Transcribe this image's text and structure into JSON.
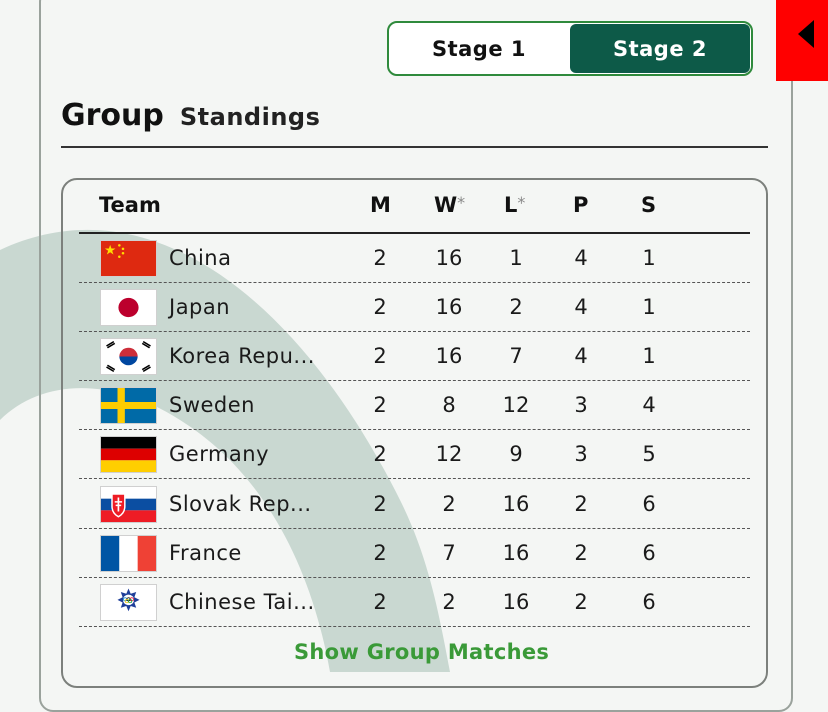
{
  "stages": [
    {
      "label": "Stage 1",
      "active": false
    },
    {
      "label": "Stage 2",
      "active": true
    }
  ],
  "title": {
    "main": "Group",
    "sub": "Standings"
  },
  "columns": {
    "team": "Team",
    "m": "M",
    "w": "W",
    "l": "L",
    "p": "P",
    "s": "S",
    "star": "*"
  },
  "rows": [
    {
      "team": "China",
      "flag": "china-flag-icon",
      "m": "2",
      "w": "16",
      "l": "1",
      "p": "4",
      "s": "1"
    },
    {
      "team": "Japan",
      "flag": "japan-flag-icon",
      "m": "2",
      "w": "16",
      "l": "2",
      "p": "4",
      "s": "1"
    },
    {
      "team": "Korea Repu...",
      "flag": "korea-flag-icon",
      "m": "2",
      "w": "16",
      "l": "7",
      "p": "4",
      "s": "1"
    },
    {
      "team": "Sweden",
      "flag": "sweden-flag-icon",
      "m": "2",
      "w": "8",
      "l": "12",
      "p": "3",
      "s": "4"
    },
    {
      "team": "Germany",
      "flag": "germany-flag-icon",
      "m": "2",
      "w": "12",
      "l": "9",
      "p": "3",
      "s": "5"
    },
    {
      "team": "Slovak Rep...",
      "flag": "slovakia-flag-icon",
      "m": "2",
      "w": "2",
      "l": "16",
      "p": "2",
      "s": "6"
    },
    {
      "team": "France",
      "flag": "france-flag-icon",
      "m": "2",
      "w": "7",
      "l": "16",
      "p": "2",
      "s": "6"
    },
    {
      "team": "Chinese Tai...",
      "flag": "chinese-taipei-flag-icon",
      "m": "2",
      "w": "2",
      "l": "16",
      "p": "2",
      "s": "6"
    }
  ],
  "show_matches": "Show Group Matches",
  "colors": {
    "accent": "#0d5a48",
    "link": "#3a9a38",
    "side_tab": "#ff0000"
  }
}
